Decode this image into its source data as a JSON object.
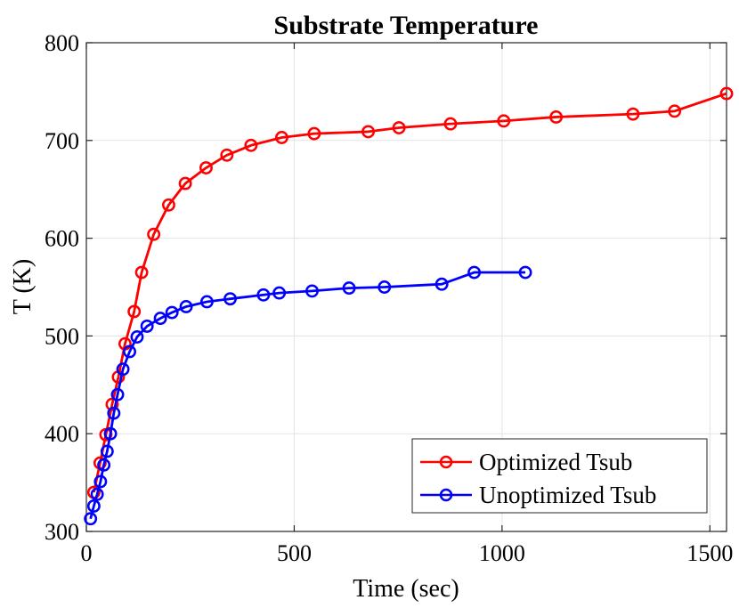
{
  "chart_data": {
    "type": "line",
    "title": "Substrate Temperature",
    "xlabel": "Time (sec)",
    "ylabel": "T (K)",
    "xlim": [
      0,
      1540
    ],
    "ylim": [
      300,
      800
    ],
    "xticks": [
      0,
      500,
      1000,
      1500
    ],
    "yticks": [
      300,
      400,
      500,
      600,
      700,
      800
    ],
    "xtick_labels": [
      "0",
      "500",
      "1000",
      "1500"
    ],
    "ytick_labels": [
      "300",
      "400",
      "500",
      "600",
      "700",
      "800"
    ],
    "grid": true,
    "legend_position": "bottom-right",
    "series": [
      {
        "name": "Optimized Tsub",
        "color": "#ff0000",
        "marker": "circle",
        "x": [
          18,
          33,
          47,
          62,
          77,
          93,
          115,
          133,
          162,
          198,
          238,
          288,
          338,
          396,
          470,
          548,
          678,
          752,
          876,
          1004,
          1130,
          1315,
          1415,
          1540
        ],
        "y": [
          340,
          370,
          399,
          430,
          458,
          492,
          525,
          565,
          604,
          634,
          656,
          672,
          685,
          695,
          703,
          707,
          709,
          713,
          717,
          720,
          724,
          727,
          730,
          748
        ]
      },
      {
        "name": "Unoptimized Tsub",
        "color": "#0000ff",
        "marker": "circle",
        "x": [
          10,
          18,
          26,
          34,
          42,
          50,
          58,
          66,
          75,
          88,
          104,
          122,
          146,
          178,
          206,
          240,
          290,
          346,
          426,
          464,
          543,
          632,
          717,
          855,
          933,
          1056
        ],
        "y": [
          313,
          326,
          338,
          351,
          368,
          382,
          400,
          421,
          440,
          466,
          484,
          499,
          510,
          518,
          524,
          530,
          535,
          538,
          542,
          544,
          546,
          549,
          550,
          553,
          565,
          565
        ]
      }
    ]
  }
}
